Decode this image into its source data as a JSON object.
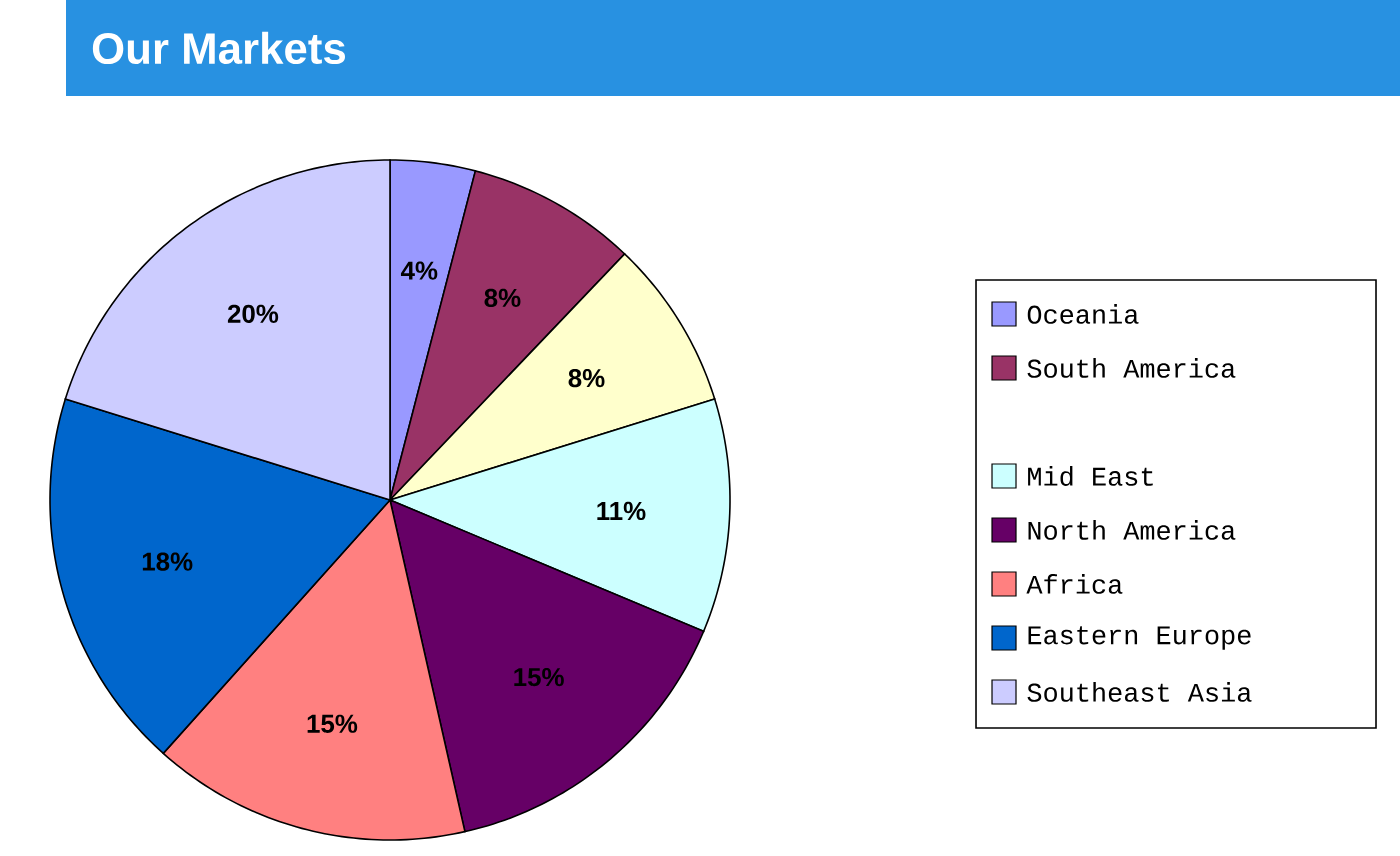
{
  "chart_data": {
    "type": "pie",
    "title": "Our Markets",
    "categories": [
      "Oceania",
      "South America",
      null,
      "Mid East",
      "North America",
      "Africa",
      "Eastern Europe",
      "Southeast Asia"
    ],
    "values": [
      4,
      8,
      8,
      11,
      15,
      15,
      18,
      20
    ],
    "value_labels": [
      "4%",
      "8%",
      "8%",
      "11%",
      "15%",
      "15%",
      "18%",
      "20%"
    ],
    "colors": [
      "#9999ff",
      "#993366",
      "#ffffcc",
      "#ccffff",
      "#660066",
      "#ff8080",
      "#0066cc",
      "#ccccff"
    ],
    "legend": "right"
  }
}
